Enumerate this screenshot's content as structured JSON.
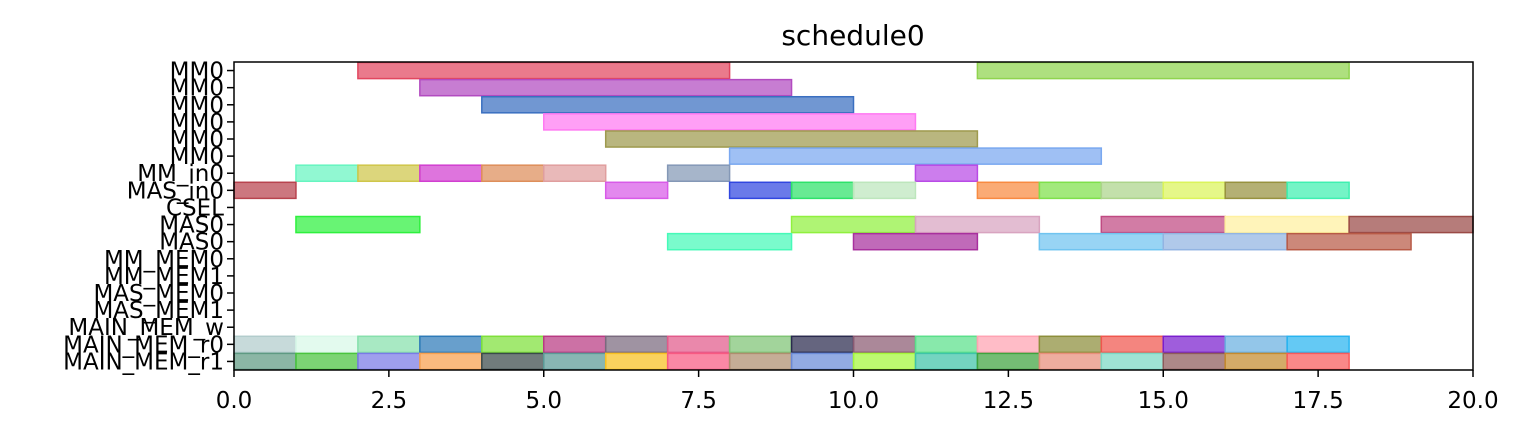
{
  "chart_data": {
    "type": "gantt",
    "title": "schedule0",
    "xlabel": "",
    "ylabel": "",
    "xlim": [
      0,
      20
    ],
    "xticks": [
      0,
      2.5,
      5,
      7.5,
      10,
      12.5,
      15,
      17.5,
      20
    ],
    "xtick_labels": [
      "0.0",
      "2.5",
      "5.0",
      "7.5",
      "10.0",
      "12.5",
      "15.0",
      "17.5",
      "20.0"
    ],
    "rows": [
      "MM0",
      "MM0",
      "MM0",
      "MM0",
      "MM0",
      "MM0",
      "MM_in0",
      "MAS_in0",
      "CSEL",
      "MAS0",
      "MAS0",
      "MM_MEM0",
      "MM_MEM1",
      "MAS_MEM0",
      "MAS_MEM1",
      "MAIN_MEM_w",
      "MAIN_MEM_r0",
      "MAIN_MEM_r1"
    ],
    "tasks": [
      {
        "row": 0,
        "start": 2,
        "end": 8,
        "color": "#e2465f"
      },
      {
        "row": 0,
        "start": 12,
        "end": 18,
        "color": "#8fd44e"
      },
      {
        "row": 1,
        "start": 3,
        "end": 9,
        "color": "#b24bc0"
      },
      {
        "row": 2,
        "start": 4,
        "end": 10,
        "color": "#3a6fc0"
      },
      {
        "row": 3,
        "start": 5,
        "end": 11,
        "color": "#ff7af2"
      },
      {
        "row": 4,
        "start": 6,
        "end": 12,
        "color": "#9e9a4e"
      },
      {
        "row": 5,
        "start": 8,
        "end": 14,
        "color": "#7aa8f0"
      },
      {
        "row": 6,
        "start": 1,
        "end": 2,
        "color": "#66f5c0"
      },
      {
        "row": 6,
        "start": 2,
        "end": 3,
        "color": "#cfc64a"
      },
      {
        "row": 6,
        "start": 3,
        "end": 4,
        "color": "#d13fd0"
      },
      {
        "row": 6,
        "start": 4,
        "end": 5,
        "color": "#de8e5a"
      },
      {
        "row": 6,
        "start": 5,
        "end": 6,
        "color": "#e09e9e"
      },
      {
        "row": 6,
        "start": 7,
        "end": 8,
        "color": "#8498b6"
      },
      {
        "row": 6,
        "start": 11,
        "end": 12,
        "color": "#b94be6"
      },
      {
        "row": 7,
        "start": 0,
        "end": 1,
        "color": "#b8434e"
      },
      {
        "row": 7,
        "start": 6,
        "end": 7,
        "color": "#d85ae8"
      },
      {
        "row": 7,
        "start": 8,
        "end": 9,
        "color": "#3046e0"
      },
      {
        "row": 7,
        "start": 9,
        "end": 10,
        "color": "#2ee26a"
      },
      {
        "row": 7,
        "start": 10,
        "end": 11,
        "color": "#bde6bc"
      },
      {
        "row": 7,
        "start": 12,
        "end": 13,
        "color": "#f88a40"
      },
      {
        "row": 7,
        "start": 13,
        "end": 14,
        "color": "#7ee04a"
      },
      {
        "row": 7,
        "start": 14,
        "end": 15,
        "color": "#acd48a"
      },
      {
        "row": 7,
        "start": 15,
        "end": 16,
        "color": "#dbf45a"
      },
      {
        "row": 7,
        "start": 16,
        "end": 17,
        "color": "#97923e"
      },
      {
        "row": 7,
        "start": 17,
        "end": 18,
        "color": "#3ef0b0"
      },
      {
        "row": 9,
        "start": 1,
        "end": 3,
        "color": "#2ef03e"
      },
      {
        "row": 9,
        "start": 9,
        "end": 11,
        "color": "#90f03e"
      },
      {
        "row": 9,
        "start": 11,
        "end": 13,
        "color": "#d8a4c0"
      },
      {
        "row": 9,
        "start": 14,
        "end": 16,
        "color": "#c04a82"
      },
      {
        "row": 9,
        "start": 16,
        "end": 18,
        "color": "#fff0a0"
      },
      {
        "row": 9,
        "start": 18,
        "end": 20,
        "color": "#9a4a46"
      },
      {
        "row": 10,
        "start": 7,
        "end": 9,
        "color": "#46fab8"
      },
      {
        "row": 10,
        "start": 10,
        "end": 12,
        "color": "#a8309e"
      },
      {
        "row": 10,
        "start": 13,
        "end": 15,
        "color": "#70c4f0"
      },
      {
        "row": 10,
        "start": 15,
        "end": 17,
        "color": "#92b4e2"
      },
      {
        "row": 10,
        "start": 17,
        "end": 19,
        "color": "#b85a46"
      },
      {
        "row": 16,
        "start": 0,
        "end": 1,
        "color": "#b2cccc"
      },
      {
        "row": 16,
        "start": 1,
        "end": 2,
        "color": "#d8f8e8"
      },
      {
        "row": 16,
        "start": 2,
        "end": 3,
        "color": "#86e0ac"
      },
      {
        "row": 16,
        "start": 3,
        "end": 4,
        "color": "#2e7ab8"
      },
      {
        "row": 16,
        "start": 4,
        "end": 5,
        "color": "#7ee03a"
      },
      {
        "row": 16,
        "start": 5,
        "end": 6,
        "color": "#b83a82"
      },
      {
        "row": 16,
        "start": 6,
        "end": 7,
        "color": "#7a6a7e"
      },
      {
        "row": 16,
        "start": 7,
        "end": 8,
        "color": "#e25a8a"
      },
      {
        "row": 16,
        "start": 8,
        "end": 9,
        "color": "#7ec474"
      },
      {
        "row": 16,
        "start": 9,
        "end": 10,
        "color": "#2a2a4e"
      },
      {
        "row": 16,
        "start": 10,
        "end": 11,
        "color": "#8a5a72"
      },
      {
        "row": 16,
        "start": 11,
        "end": 12,
        "color": "#5ae08a"
      },
      {
        "row": 16,
        "start": 12,
        "end": 13,
        "color": "#ffa2b2"
      },
      {
        "row": 16,
        "start": 13,
        "end": 14,
        "color": "#8c8e3a"
      },
      {
        "row": 16,
        "start": 14,
        "end": 15,
        "color": "#f0564e"
      },
      {
        "row": 16,
        "start": 15,
        "end": 16,
        "color": "#7a1ece"
      },
      {
        "row": 16,
        "start": 16,
        "end": 17,
        "color": "#6ab0e0"
      },
      {
        "row": 16,
        "start": 17,
        "end": 18,
        "color": "#28b4f0"
      },
      {
        "row": 17,
        "start": 0,
        "end": 1,
        "color": "#5e9a82"
      },
      {
        "row": 17,
        "start": 1,
        "end": 2,
        "color": "#4ac43e"
      },
      {
        "row": 17,
        "start": 2,
        "end": 3,
        "color": "#7a7ae6"
      },
      {
        "row": 17,
        "start": 3,
        "end": 4,
        "color": "#f8a04e"
      },
      {
        "row": 17,
        "start": 4,
        "end": 5,
        "color": "#3a4a4a"
      },
      {
        "row": 17,
        "start": 5,
        "end": 6,
        "color": "#5a9a96"
      },
      {
        "row": 17,
        "start": 6,
        "end": 7,
        "color": "#f8c020"
      },
      {
        "row": 17,
        "start": 7,
        "end": 8,
        "color": "#f85a82"
      },
      {
        "row": 17,
        "start": 8,
        "end": 9,
        "color": "#ae8e6e"
      },
      {
        "row": 17,
        "start": 9,
        "end": 10,
        "color": "#6a8ad8"
      },
      {
        "row": 17,
        "start": 10,
        "end": 11,
        "color": "#a4f83a"
      },
      {
        "row": 17,
        "start": 11,
        "end": 12,
        "color": "#3ec4a8"
      },
      {
        "row": 17,
        "start": 12,
        "end": 13,
        "color": "#3ea43e"
      },
      {
        "row": 17,
        "start": 13,
        "end": 14,
        "color": "#e88e7a"
      },
      {
        "row": 17,
        "start": 14,
        "end": 15,
        "color": "#7ad8c4"
      },
      {
        "row": 17,
        "start": 15,
        "end": 16,
        "color": "#8e5a5a"
      },
      {
        "row": 17,
        "start": 16,
        "end": 17,
        "color": "#c48a2e"
      },
      {
        "row": 17,
        "start": 17,
        "end": 18,
        "color": "#f85a5a"
      }
    ]
  }
}
